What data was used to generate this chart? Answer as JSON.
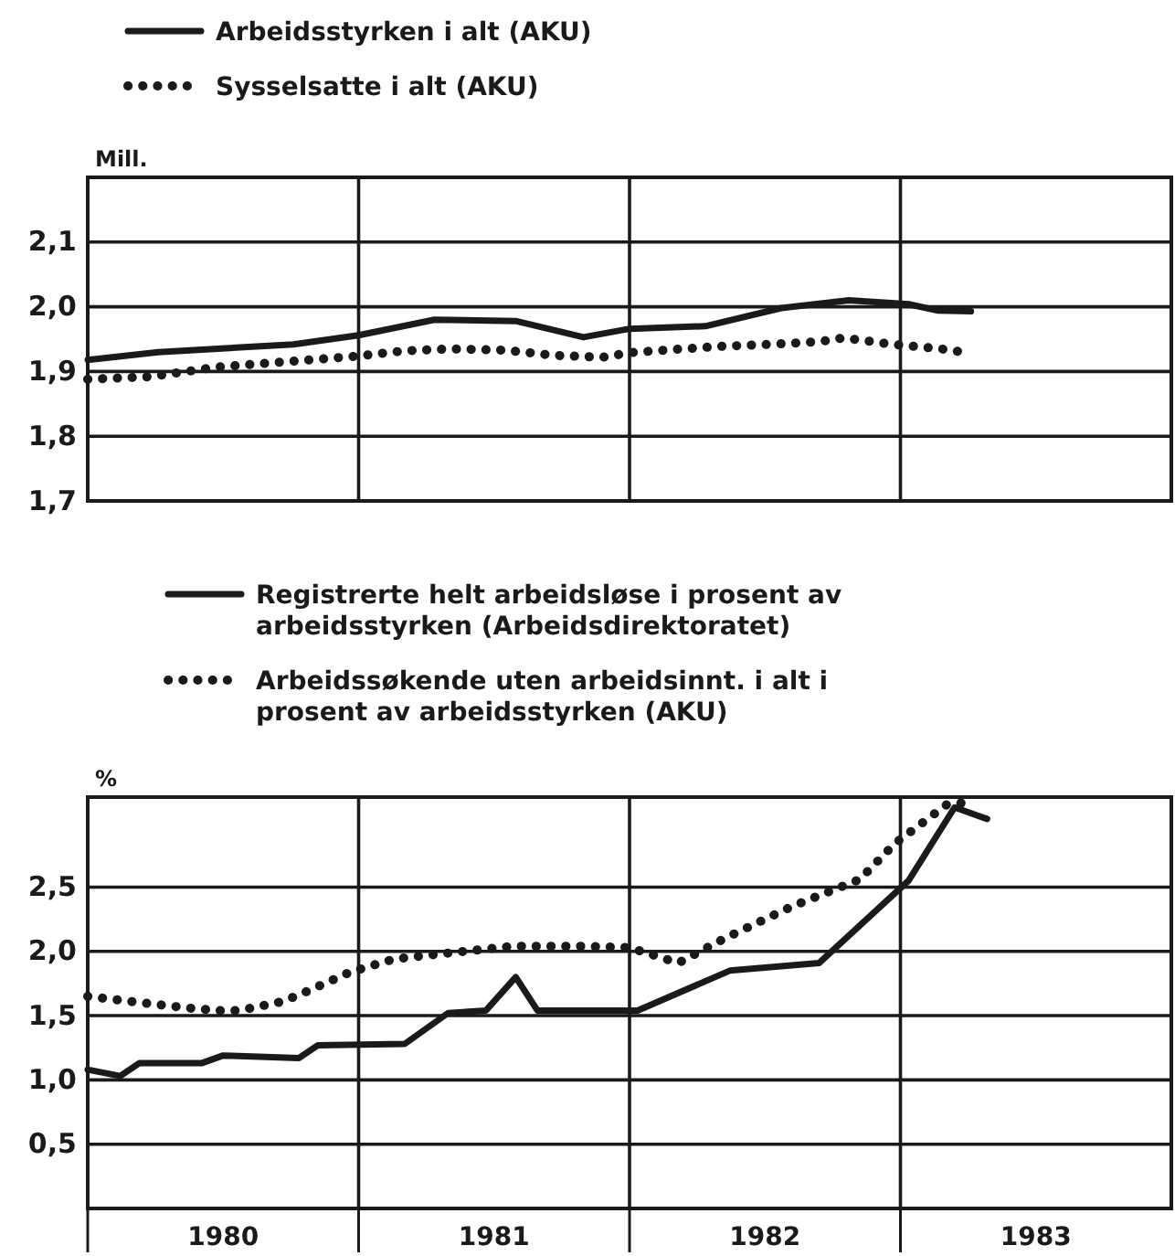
{
  "chart_data": [
    {
      "type": "line",
      "ylabel": "Mill.",
      "legend": "top",
      "tick_labels": "y",
      "grid": true,
      "xlim": [
        1980,
        1984
      ],
      "ylim": [
        1.7,
        2.2
      ],
      "xticks": [
        {
          "value": 1980,
          "label": null
        },
        {
          "value": 1981,
          "label": null
        },
        {
          "value": 1982,
          "label": null
        },
        {
          "value": 1983,
          "label": null
        }
      ],
      "yticks": [
        {
          "value": 1.7,
          "label": "1,7"
        },
        {
          "value": 1.8,
          "label": "1,8"
        },
        {
          "value": 1.9,
          "label": "1,9"
        },
        {
          "value": 2.0,
          "label": "2,0"
        },
        {
          "value": 2.1,
          "label": "2,1"
        }
      ],
      "series": [
        {
          "name": "Arbeidsstyrken i alt (AKU)",
          "color": "#1a1a1a",
          "line_style": "solid",
          "x": [
            1980.0,
            1980.26,
            1980.51,
            1980.76,
            1981.0,
            1981.28,
            1981.58,
            1981.83,
            1982.0,
            1982.28,
            1982.56,
            1982.81,
            1983.03,
            1983.14,
            1983.26
          ],
          "values": [
            1.918,
            1.93,
            1.936,
            1.942,
            1.956,
            1.98,
            1.978,
            1.953,
            1.966,
            1.97,
            1.998,
            2.01,
            2.004,
            1.994,
            1.993
          ]
        },
        {
          "name": "Sysselsatte i alt (AKU)",
          "color": "#1a1a1a",
          "line_style": "dotted",
          "x": [
            1980.0,
            1980.23,
            1980.48,
            1980.73,
            1981.0,
            1981.17,
            1981.34,
            1981.54,
            1981.72,
            1981.9,
            1982.0,
            1982.16,
            1982.34,
            1982.52,
            1982.7,
            1982.79,
            1982.97,
            1983.15,
            1983.23
          ],
          "values": [
            1.888,
            1.892,
            1.907,
            1.915,
            1.924,
            1.932,
            1.935,
            1.933,
            1.925,
            1.922,
            1.929,
            1.934,
            1.939,
            1.942,
            1.946,
            1.952,
            1.942,
            1.935,
            1.93
          ]
        }
      ]
    },
    {
      "type": "line",
      "ylabel": "%",
      "legend": "top",
      "grid": true,
      "xlim": [
        1980,
        1984
      ],
      "ylim": [
        0,
        3.2
      ],
      "xticks": [
        {
          "value": 1980,
          "label": null
        },
        {
          "value": 1980.5,
          "label": "1980"
        },
        {
          "value": 1981,
          "label": null
        },
        {
          "value": 1981.5,
          "label": "1981"
        },
        {
          "value": 1982,
          "label": null
        },
        {
          "value": 1982.5,
          "label": "1982"
        },
        {
          "value": 1983,
          "label": null
        },
        {
          "value": 1983.5,
          "label": "1983"
        }
      ],
      "yticks": [
        {
          "value": 0.5,
          "label": "0,5"
        },
        {
          "value": 1.0,
          "label": "1,0"
        },
        {
          "value": 1.5,
          "label": "1,5"
        },
        {
          "value": 2.0,
          "label": "2,0"
        },
        {
          "value": 2.5,
          "label": "2,5"
        }
      ],
      "series": [
        {
          "name": "Registrerte helt arbeidsløse i prosent av arbeidsstyrken (Arbeidsdirektoratet)",
          "color": "#1a1a1a",
          "line_style": "solid",
          "x": [
            1980.0,
            1980.12,
            1980.19,
            1980.42,
            1980.5,
            1980.78,
            1980.85,
            1981.17,
            1981.33,
            1981.47,
            1981.58,
            1981.66,
            1982.03,
            1982.37,
            1982.7,
            1983.03,
            1983.2,
            1983.28,
            1983.32
          ],
          "values": [
            1.08,
            1.03,
            1.13,
            1.13,
            1.19,
            1.17,
            1.27,
            1.28,
            1.52,
            1.54,
            1.8,
            1.54,
            1.54,
            1.85,
            1.91,
            2.55,
            3.12,
            3.06,
            3.03
          ]
        },
        {
          "name": "Arbeidssøkende uten arbeidsinnt. i alt i prosent av arbeidsstyrken (AKU)",
          "color": "#1a1a1a",
          "line_style": "dotted",
          "x": [
            1980.0,
            1980.2,
            1980.37,
            1980.48,
            1980.56,
            1980.72,
            1980.8,
            1980.97,
            1981.13,
            1981.3,
            1981.57,
            1981.82,
            1982.0,
            1982.18,
            1982.35,
            1982.6,
            1982.85,
            1982.98,
            1983.17,
            1983.25
          ],
          "values": [
            1.65,
            1.6,
            1.56,
            1.54,
            1.54,
            1.61,
            1.68,
            1.84,
            1.94,
            1.98,
            2.04,
            2.04,
            2.03,
            1.91,
            2.1,
            2.35,
            2.56,
            2.84,
            3.14,
            3.16
          ]
        }
      ]
    }
  ]
}
